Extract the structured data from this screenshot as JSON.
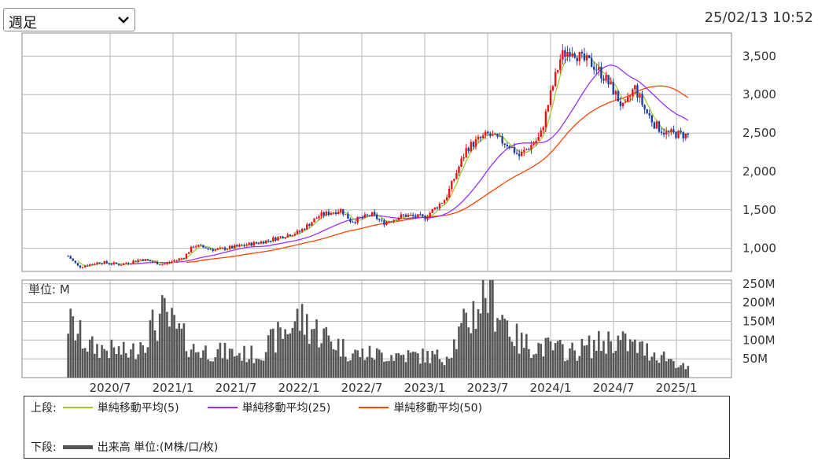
{
  "header": {
    "period_select_value": "週足",
    "timestamp": "25/02/13 10:52"
  },
  "colors": {
    "price_up": "#ee1111",
    "price_down": "#1a3fa8",
    "ma5": "#9acd32",
    "ma25": "#9b30ff",
    "ma50": "#ff4500",
    "volume": "#555555",
    "grid": "#b8b8b8"
  },
  "chart_data": [
    {
      "type": "candlestick",
      "panel": "price",
      "y_ticks": [
        "1,000",
        "1,500",
        "2,000",
        "2,500",
        "3,000",
        "3,500"
      ],
      "ylim": [
        700,
        3800
      ],
      "x_ticks": [
        "2020/7",
        "2021/1",
        "2021/7",
        "2022/1",
        "2022/7",
        "2023/1",
        "2023/7",
        "2024/1",
        "2024/7",
        "2025/1"
      ],
      "grid": true,
      "price_keypoints": [
        [
          "2020/3",
          900
        ],
        [
          "2020/4",
          760
        ],
        [
          "2020/6",
          820
        ],
        [
          "2020/8",
          790
        ],
        [
          "2020/10",
          860
        ],
        [
          "2020/12",
          790
        ],
        [
          "2021/2",
          880
        ],
        [
          "2021/3",
          1040
        ],
        [
          "2021/5",
          980
        ],
        [
          "2021/7",
          1020
        ],
        [
          "2021/10",
          1100
        ],
        [
          "2021/12",
          1180
        ],
        [
          "2022/1",
          1210
        ],
        [
          "2022/3",
          1430
        ],
        [
          "2022/5",
          1500
        ],
        [
          "2022/6",
          1350
        ],
        [
          "2022/8",
          1440
        ],
        [
          "2022/9",
          1330
        ],
        [
          "2022/11",
          1430
        ],
        [
          "2023/1",
          1400
        ],
        [
          "2023/3",
          1650
        ],
        [
          "2023/5",
          2300
        ],
        [
          "2023/6",
          2400
        ],
        [
          "2023/7",
          2480
        ],
        [
          "2023/9",
          2350
        ],
        [
          "2023/10",
          2200
        ],
        [
          "2023/12",
          2450
        ],
        [
          "2024/1",
          3000
        ],
        [
          "2024/2",
          3500
        ],
        [
          "2024/3",
          3600
        ],
        [
          "2024/4",
          3450
        ],
        [
          "2024/5",
          3400
        ],
        [
          "2024/6",
          3250
        ],
        [
          "2024/7",
          3050
        ],
        [
          "2024/8",
          2800
        ],
        [
          "2024/9",
          3100
        ],
        [
          "2024/10",
          2800
        ],
        [
          "2024/11",
          2600
        ],
        [
          "2024/12",
          2500
        ],
        [
          "2025/2",
          2470
        ]
      ],
      "series": [
        {
          "name": "単純移動平均(5)",
          "color": "#9acd32"
        },
        {
          "name": "単純移動平均(25)",
          "color": "#9b30ff"
        },
        {
          "name": "単純移動平均(50)",
          "color": "#ff4500"
        }
      ]
    },
    {
      "type": "bar",
      "panel": "volume",
      "unit_label": "単位: M",
      "y_ticks": [
        "50M",
        "100M",
        "150M",
        "200M",
        "250M"
      ],
      "ylim": [
        0,
        260
      ],
      "x_ticks": [
        "2020/7",
        "2021/1",
        "2021/7",
        "2022/1",
        "2022/7",
        "2023/1",
        "2023/7",
        "2024/1",
        "2024/7",
        "2025/1"
      ],
      "volume_keypoints": [
        [
          "2020/3",
          160
        ],
        [
          "2020/5",
          90
        ],
        [
          "2020/9",
          70
        ],
        [
          "2020/12",
          180
        ],
        [
          "2021/3",
          80
        ],
        [
          "2021/9",
          65
        ],
        [
          "2022/1",
          170
        ],
        [
          "2022/6",
          70
        ],
        [
          "2023/3",
          60
        ],
        [
          "2023/7",
          255
        ],
        [
          "2023/10",
          100
        ],
        [
          "2024/3",
          75
        ],
        [
          "2024/7",
          110
        ],
        [
          "2024/12",
          60
        ],
        [
          "2025/2",
          25
        ]
      ]
    }
  ],
  "legend": {
    "top_label": "上段:",
    "items": [
      {
        "label": "単純移動平均(5)",
        "color": "#9acd32"
      },
      {
        "label": "単純移動平均(25)",
        "color": "#9b30ff"
      },
      {
        "label": "単純移動平均(50)",
        "color": "#ff4500"
      }
    ],
    "bottom_label": "下段:",
    "volume_label": "出来高 単位:(M株/口/枚)",
    "volume_color": "#555555"
  }
}
